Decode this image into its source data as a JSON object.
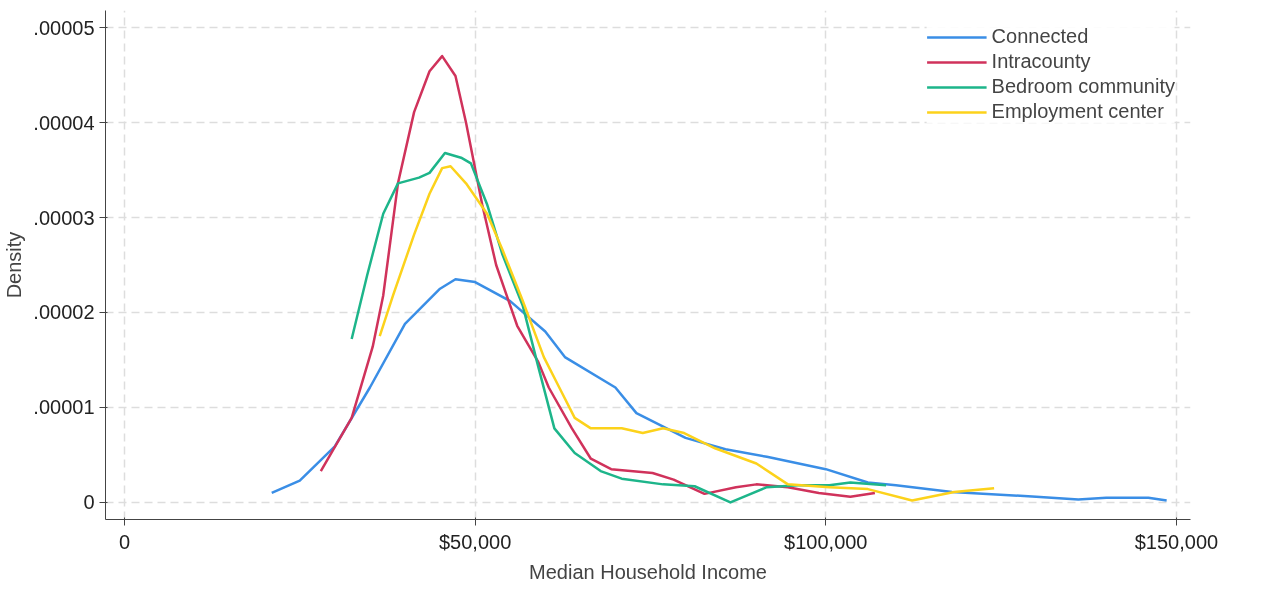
{
  "chart_data": {
    "type": "line",
    "xlabel": "Median Household Income",
    "ylabel": "Density",
    "xlim": [
      -2700,
      152000
    ],
    "ylim": [
      -1.8e-06,
      5.18e-05
    ],
    "xticks": [
      0,
      {
        "value": 50000,
        "label": "$50,000"
      },
      {
        "value": 100000,
        "label": "$100,000"
      },
      {
        "value": 150000,
        "label": "$150,000"
      }
    ],
    "yticks": [
      0,
      {
        "value": 1e-05,
        "label": ".00001"
      },
      {
        "value": 2e-05,
        "label": ".00002"
      },
      {
        "value": 3e-05,
        "label": ".00003"
      },
      {
        "value": 4e-05,
        "label": ".00004"
      },
      {
        "value": 5e-05,
        "label": ".00005"
      }
    ],
    "grid": true,
    "legend": "top right",
    "line_style": "solid",
    "series": [
      {
        "name": "Connected",
        "color": "#3a8ee6",
        "x": [
          21000,
          25000,
          30000,
          35000,
          40000,
          45000,
          47200,
          50000,
          55000,
          60000,
          62800,
          70000,
          73000,
          80000,
          85700,
          91600,
          100000,
          106000,
          110000,
          118000,
          130000,
          136000,
          140000,
          146000,
          148600
        ],
        "values": [
          1e-06,
          2.3e-06,
          5.9e-06,
          1.21e-05,
          1.88e-05,
          2.25e-05,
          2.35e-05,
          2.32e-05,
          2.12e-05,
          1.8e-05,
          1.53e-05,
          1.21e-05,
          9.4e-06,
          6.8e-06,
          5.6e-06,
          4.8e-06,
          3.5e-06,
          2.1e-06,
          1.8e-06,
          1.1e-06,
          6e-07,
          3e-07,
          5e-07,
          5e-07,
          2e-07
        ]
      },
      {
        "name": "Intracounty",
        "color": "#d0325b",
        "x": [
          28000,
          32400,
          35400,
          36900,
          39000,
          41300,
          43500,
          45300,
          47200,
          48700,
          51000,
          53000,
          56000,
          59000,
          60500,
          63800,
          66500,
          69400,
          75300,
          78300,
          82700,
          87200,
          90100,
          94600,
          99000,
          103500,
          107000
        ],
        "values": [
          3.3e-06,
          8.9e-06,
          1.64e-05,
          2.18e-05,
          3.36e-05,
          4.11e-05,
          4.54e-05,
          4.7e-05,
          4.49e-05,
          4e-05,
          3.14e-05,
          2.5e-05,
          1.86e-05,
          1.48e-05,
          1.21e-05,
          7.8e-06,
          4.6e-06,
          3.5e-06,
          3.1e-06,
          2.4e-06,
          9e-07,
          1.6e-06,
          1.9e-06,
          1.6e-06,
          1e-06,
          6e-07,
          1e-06
        ]
      },
      {
        "name": "Bedroom community",
        "color": "#1db58a",
        "x": [
          32400,
          34600,
          36900,
          39000,
          42000,
          43500,
          45700,
          48000,
          49400,
          51700,
          53900,
          56800,
          59000,
          61300,
          64200,
          67900,
          70900,
          76800,
          81300,
          86400,
          91600,
          96000,
          100500,
          103500,
          108600
        ],
        "values": [
          1.72e-05,
          2.39e-05,
          3.04e-05,
          3.36e-05,
          3.42e-05,
          3.47e-05,
          3.68e-05,
          3.63e-05,
          3.57e-05,
          3.14e-05,
          2.61e-05,
          2.07e-05,
          1.43e-05,
          7.8e-06,
          5.2e-06,
          3.3e-06,
          2.5e-06,
          1.9e-06,
          1.7e-06,
          0,
          1.6e-06,
          1.8e-06,
          1.8e-06,
          2.1e-06,
          1.8e-06
        ]
      },
      {
        "name": "Employment center",
        "color": "#fcd21b",
        "x": [
          36400,
          38300,
          41300,
          43500,
          45300,
          46500,
          48700,
          51700,
          53900,
          56800,
          59800,
          62000,
          64200,
          66500,
          70900,
          73900,
          76800,
          79800,
          84200,
          90100,
          94600,
          100500,
          106000,
          112300,
          118300,
          124000
        ],
        "values": [
          1.75e-05,
          2.18e-05,
          2.82e-05,
          3.25e-05,
          3.52e-05,
          3.54e-05,
          3.36e-05,
          3.04e-05,
          2.66e-05,
          2.12e-05,
          1.53e-05,
          1.21e-05,
          8.9e-06,
          7.8e-06,
          7.8e-06,
          7.3e-06,
          7.8e-06,
          7.3e-06,
          5.7e-06,
          4.1e-06,
          1.9e-06,
          1.6e-06,
          1.4e-06,
          2e-07,
          1.1e-06,
          1.5e-06
        ]
      }
    ]
  }
}
